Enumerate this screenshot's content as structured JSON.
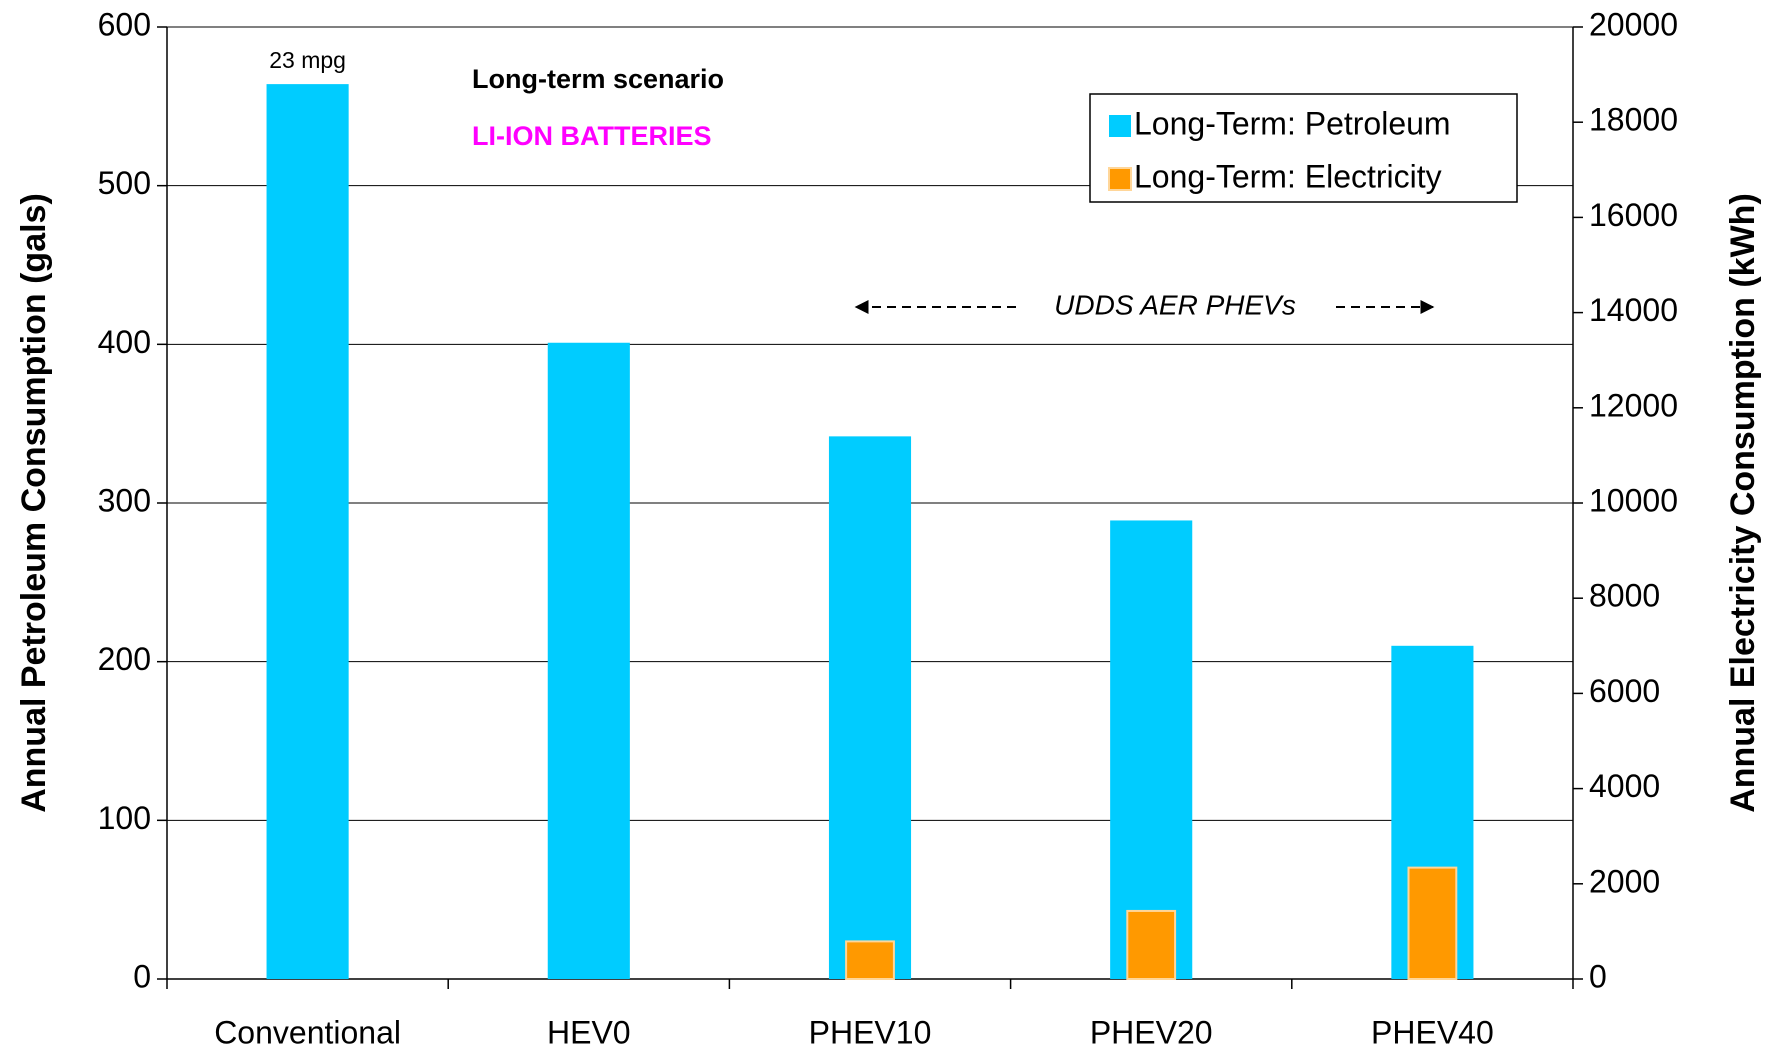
{
  "chart_data": {
    "type": "bar",
    "y_label": "Annual Petroleum Consumption (gals)",
    "y2_label": "Annual Electricity Consumption (kWh)",
    "categories": [
      "Conventional",
      "HEV0",
      "PHEV10",
      "PHEV20",
      "PHEV40"
    ],
    "series": [
      {
        "name": "Long-Term: Petroleum",
        "color": "#00ccff",
        "values": [
          564,
          401,
          342,
          289,
          210
        ]
      },
      {
        "name": "Long-Term: Electricity",
        "color": "#ff9900",
        "axis": "y2",
        "values": [
          null,
          null,
          790,
          1430,
          2340
        ]
      }
    ],
    "ylim": [
      0,
      600
    ],
    "yticks": [
      0,
      100,
      200,
      300,
      400,
      500,
      600
    ],
    "y2lim": [
      0,
      20000
    ],
    "y2ticks": [
      0,
      2000,
      4000,
      6000,
      8000,
      10000,
      12000,
      14000,
      16000,
      18000,
      20000
    ],
    "grid": true,
    "legend": "upper right",
    "annotations": {
      "bar_note": "23 mpg",
      "scenario": "Long-term scenario",
      "battery": "LI-ION BATTERIES",
      "range": "UDDS AER PHEVs"
    }
  }
}
